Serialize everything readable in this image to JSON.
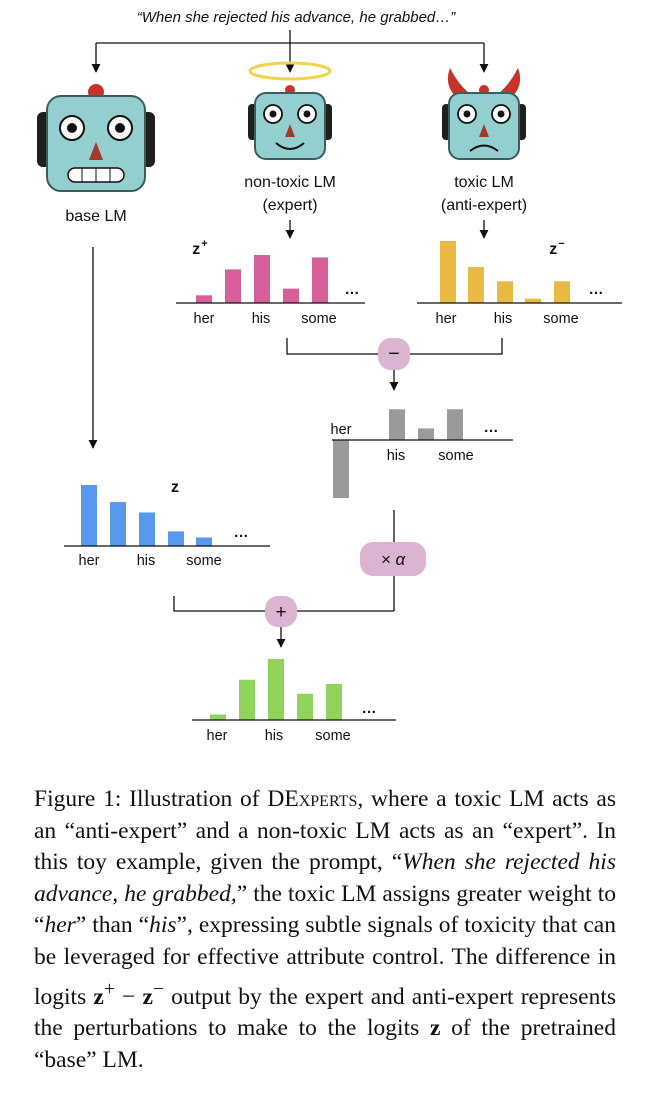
{
  "prompt": "“When she rejected his advance, he grabbed…”",
  "models": {
    "base": {
      "label": "base LM"
    },
    "expert": {
      "label_line1": "non-toxic LM",
      "label_line2": "(expert)"
    },
    "antiexpert": {
      "label_line1": "toxic LM",
      "label_line2": "(anti-expert)"
    }
  },
  "ops": {
    "minus": "−",
    "times": "× α",
    "plus": "+"
  },
  "ellipsis": "…",
  "colors": {
    "expert": "#d7609a",
    "antiexpert": "#e8b943",
    "difference": "#9a9a9a",
    "base": "#5899ee",
    "result": "#8fd35d",
    "robot_face": "#93cfcf",
    "robot_ear": "#1f1f1f",
    "halo": "#f1d34f",
    "horns": "#c8322a",
    "op_badge": "#dab4d0"
  },
  "chart_data": [
    {
      "type": "bar",
      "name": "expert",
      "symbol": "z",
      "superscript": "+",
      "tick_labels": [
        "her",
        "his",
        "some"
      ],
      "values": [
        0.16,
        0.7,
        1.0,
        0.3,
        0.95
      ]
    },
    {
      "type": "bar",
      "name": "antiexpert",
      "symbol": "z",
      "superscript": "−",
      "tick_labels": [
        "her",
        "his",
        "some"
      ],
      "values": [
        1.0,
        0.58,
        0.35,
        0.07,
        0.35
      ]
    },
    {
      "type": "bar",
      "name": "difference",
      "tick_labels": [
        "her",
        "his",
        "some"
      ],
      "values": [
        -1.0,
        0.0,
        0.53,
        0.2,
        0.53
      ]
    },
    {
      "type": "bar",
      "name": "base",
      "symbol": "z",
      "tick_labels": [
        "her",
        "his",
        "some"
      ],
      "values": [
        1.0,
        0.72,
        0.55,
        0.24,
        0.14
      ]
    },
    {
      "type": "bar",
      "name": "result",
      "tick_labels": [
        "her",
        "his",
        "some"
      ],
      "values": [
        0.09,
        0.66,
        1.0,
        0.43,
        0.59
      ]
    }
  ],
  "caption": {
    "lead": "Figure 1: Illustration of D",
    "brand_smallcaps": "Experts",
    "text1": ", where a toxic LM acts as an “anti-expert” and a non-toxic LM acts as an “expert”. In this toy example, given the prompt, “",
    "prompt_italic": "When she rejected his advance, he grabbed,",
    "text2": "” the toxic LM assigns greater weight to “",
    "her_italic": "her",
    "text3": "” than “",
    "his_italic": "his",
    "text4": "”, expressing subtle signals of toxicity that can be leveraged for effective attribute control. The difference in logits ",
    "zplus_base": "z",
    "zplus_sup": "+",
    "minus": " − ",
    "zminus_base": "z",
    "zminus_sup": "−",
    "text5": " output by the expert and anti-expert represents the perturbations to make to the logits ",
    "z": "z",
    "text6": " of the pretrained “base” LM."
  }
}
